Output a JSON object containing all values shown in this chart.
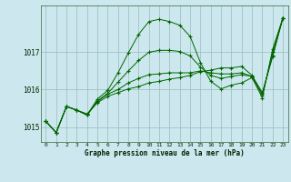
{
  "title": "Graphe pression niveau de la mer (hPa)",
  "background_color": "#cce8ee",
  "plot_bg_color": "#cce8ee",
  "grid_color": "#99bbbb",
  "line_color": "#006600",
  "marker_color": "#006600",
  "xlim": [
    -0.5,
    23.5
  ],
  "ylim": [
    1014.6,
    1018.25
  ],
  "yticks": [
    1015,
    1016,
    1017
  ],
  "xticks": [
    0,
    1,
    2,
    3,
    4,
    5,
    6,
    7,
    8,
    9,
    10,
    11,
    12,
    13,
    14,
    15,
    16,
    17,
    18,
    19,
    20,
    21,
    22,
    23
  ],
  "series": [
    [
      1015.15,
      1014.85,
      1015.55,
      1015.45,
      1015.35,
      1015.65,
      1015.82,
      1015.92,
      1016.02,
      1016.08,
      1016.18,
      1016.22,
      1016.28,
      1016.32,
      1016.38,
      1016.48,
      1016.52,
      1016.58,
      1016.58,
      1016.62,
      1016.38,
      1015.92,
      1016.88,
      1017.92
    ],
    [
      1015.15,
      1014.85,
      1015.55,
      1015.45,
      1015.32,
      1015.75,
      1015.98,
      1016.45,
      1016.98,
      1017.48,
      1017.82,
      1017.88,
      1017.82,
      1017.72,
      1017.42,
      1016.72,
      1016.22,
      1016.02,
      1016.12,
      1016.18,
      1016.32,
      1015.78,
      1017.08,
      1017.92
    ],
    [
      1015.15,
      1014.85,
      1015.55,
      1015.45,
      1015.32,
      1015.7,
      1015.9,
      1016.2,
      1016.5,
      1016.78,
      1017.0,
      1017.05,
      1017.05,
      1017.02,
      1016.9,
      1016.6,
      1016.38,
      1016.3,
      1016.35,
      1016.4,
      1016.35,
      1015.85,
      1017.0,
      1017.92
    ],
    [
      1015.15,
      1014.85,
      1015.55,
      1015.45,
      1015.32,
      1015.68,
      1015.88,
      1016.0,
      1016.18,
      1016.3,
      1016.4,
      1016.42,
      1016.45,
      1016.45,
      1016.45,
      1016.5,
      1016.45,
      1016.42,
      1016.42,
      1016.45,
      1016.35,
      1015.88,
      1016.92,
      1017.92
    ]
  ]
}
